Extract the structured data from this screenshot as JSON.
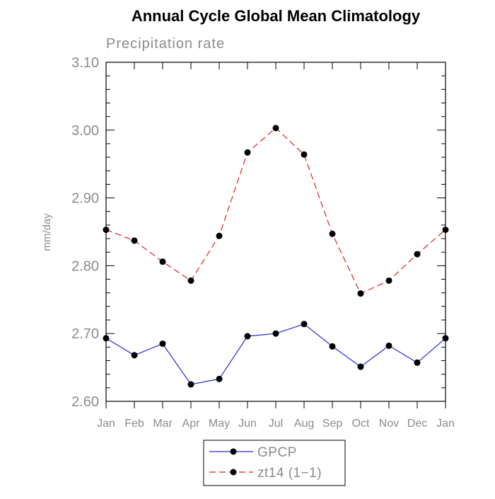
{
  "colors": {
    "axis": "#000000",
    "label_gray": "#8c8c8c",
    "gpcp": "#2a2ad6",
    "zt14": "#e02020",
    "marker": "#000000"
  },
  "chart_data": {
    "type": "line",
    "title": "Annual Cycle Global Mean Climatology",
    "subtitle": "Precipitation rate",
    "xlabel": "",
    "ylabel": "mm/day",
    "categories": [
      "Jan",
      "Feb",
      "Mar",
      "Apr",
      "May",
      "Jun",
      "Jul",
      "Aug",
      "Sep",
      "Oct",
      "Nov",
      "Dec",
      "Jan"
    ],
    "ylim": [
      2.6,
      3.1
    ],
    "yticks": [
      2.6,
      2.7,
      2.8,
      2.9,
      3.0,
      3.1
    ],
    "ytick_labels": [
      "2.60",
      "2.70",
      "2.80",
      "2.90",
      "3.00",
      "3.10"
    ],
    "minor_tick_step": 0.02,
    "series": [
      {
        "name": "GPCP",
        "style": "solid",
        "color": "#2a2ad6",
        "values": [
          2.693,
          2.668,
          2.685,
          2.625,
          2.633,
          2.696,
          2.7,
          2.714,
          2.681,
          2.651,
          2.682,
          2.657,
          2.693
        ]
      },
      {
        "name": "zt14 (1−1)",
        "style": "dashed",
        "color": "#e02020",
        "values": [
          2.853,
          2.837,
          2.806,
          2.778,
          2.844,
          2.967,
          3.003,
          2.964,
          2.847,
          2.759,
          2.778,
          2.817,
          2.853
        ]
      }
    ],
    "legend_position": "bottom-center"
  }
}
